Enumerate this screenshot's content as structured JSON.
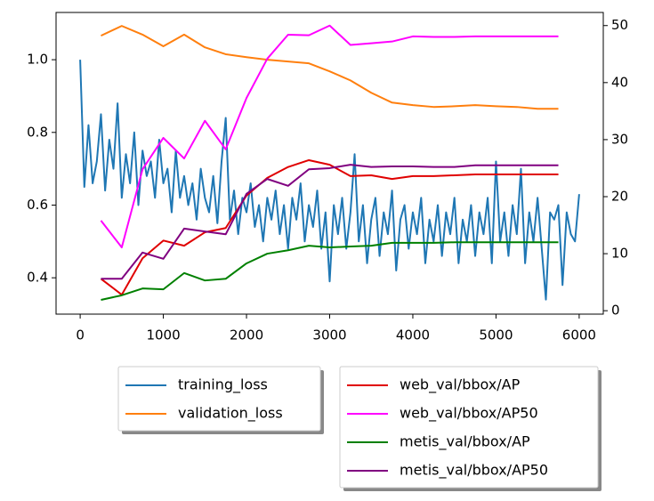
{
  "chart_data": {
    "type": "line",
    "xlim": [
      -290,
      6290
    ],
    "xticks": [
      0,
      1000,
      2000,
      3000,
      4000,
      5000,
      6000
    ],
    "ylim": [
      0.3,
      1.13
    ],
    "yticks": [
      0.4,
      0.6,
      0.8,
      {
        "value": 1.0,
        "label": "1.0"
      }
    ],
    "y2lim": [
      -0.6,
      52.3
    ],
    "y2ticks": [
      0,
      10,
      20,
      30,
      40,
      50
    ],
    "series": [
      {
        "name": "training_loss",
        "color": "#1f77b4",
        "axis": "y",
        "x": [
          0,
          50,
          100,
          150,
          200,
          250,
          300,
          350,
          400,
          450,
          500,
          550,
          600,
          650,
          700,
          750,
          800,
          850,
          900,
          950,
          1000,
          1050,
          1100,
          1150,
          1200,
          1250,
          1300,
          1350,
          1400,
          1450,
          1500,
          1550,
          1600,
          1650,
          1700,
          1750,
          1800,
          1850,
          1900,
          1950,
          2000,
          2050,
          2100,
          2150,
          2200,
          2250,
          2300,
          2350,
          2400,
          2450,
          2500,
          2550,
          2600,
          2650,
          2700,
          2750,
          2800,
          2850,
          2900,
          2950,
          3000,
          3050,
          3100,
          3150,
          3200,
          3250,
          3300,
          3350,
          3400,
          3450,
          3500,
          3550,
          3600,
          3650,
          3700,
          3750,
          3800,
          3850,
          3900,
          3950,
          4000,
          4050,
          4100,
          4150,
          4200,
          4250,
          4300,
          4350,
          4400,
          4450,
          4500,
          4550,
          4600,
          4650,
          4700,
          4750,
          4800,
          4850,
          4900,
          4950,
          5000,
          5050,
          5100,
          5150,
          5200,
          5250,
          5300,
          5350,
          5400,
          5450,
          5500,
          5550,
          5600,
          5650,
          5700,
          5750,
          5800,
          5850,
          5900,
          5950,
          6000
        ],
        "values": [
          1.0,
          0.65,
          0.82,
          0.66,
          0.72,
          0.85,
          0.64,
          0.78,
          0.7,
          0.88,
          0.62,
          0.74,
          0.66,
          0.8,
          0.6,
          0.75,
          0.68,
          0.72,
          0.62,
          0.78,
          0.66,
          0.7,
          0.58,
          0.75,
          0.62,
          0.68,
          0.6,
          0.66,
          0.56,
          0.7,
          0.62,
          0.58,
          0.68,
          0.55,
          0.72,
          0.84,
          0.56,
          0.64,
          0.52,
          0.62,
          0.58,
          0.66,
          0.54,
          0.6,
          0.5,
          0.62,
          0.56,
          0.64,
          0.52,
          0.6,
          0.48,
          0.62,
          0.56,
          0.66,
          0.5,
          0.6,
          0.54,
          0.64,
          0.48,
          0.58,
          0.39,
          0.6,
          0.52,
          0.62,
          0.48,
          0.58,
          0.74,
          0.5,
          0.6,
          0.44,
          0.56,
          0.62,
          0.46,
          0.58,
          0.52,
          0.64,
          0.42,
          0.56,
          0.6,
          0.48,
          0.58,
          0.52,
          0.62,
          0.44,
          0.56,
          0.5,
          0.6,
          0.46,
          0.58,
          0.52,
          0.62,
          0.44,
          0.56,
          0.5,
          0.6,
          0.46,
          0.58,
          0.52,
          0.62,
          0.44,
          0.72,
          0.5,
          0.58,
          0.46,
          0.6,
          0.52,
          0.7,
          0.44,
          0.58,
          0.5,
          0.62,
          0.48,
          0.34,
          0.58,
          0.56,
          0.6,
          0.38,
          0.58,
          0.52,
          0.5,
          0.63
        ]
      },
      {
        "name": "validation_loss",
        "color": "#ff7f0e",
        "axis": "y",
        "x": [
          250,
          500,
          750,
          1000,
          1250,
          1500,
          1750,
          2000,
          2250,
          2500,
          2750,
          3000,
          3250,
          3500,
          3750,
          4000,
          4250,
          4500,
          4750,
          5000,
          5250,
          5500,
          5750
        ],
        "values": [
          1.066,
          1.093,
          1.069,
          1.037,
          1.069,
          1.034,
          1.015,
          1.007,
          1.0,
          0.995,
          0.99,
          0.968,
          0.943,
          0.909,
          0.882,
          0.875,
          0.87,
          0.872,
          0.875,
          0.872,
          0.87,
          0.865,
          0.865
        ]
      },
      {
        "name": "web_val/bbox/AP",
        "color": "#e00000",
        "axis": "y2",
        "x": [
          250,
          500,
          750,
          1000,
          1250,
          1500,
          1750,
          2000,
          2250,
          2500,
          2750,
          3000,
          3250,
          3500,
          3750,
          4000,
          4250,
          4500,
          4750,
          5000,
          5250,
          5500,
          5750
        ],
        "values": [
          5.6,
          2.8,
          9.2,
          12.3,
          11.4,
          13.75,
          14.5,
          20.2,
          23.3,
          25.2,
          26.4,
          25.6,
          23.6,
          23.75,
          23.1,
          23.6,
          23.6,
          23.75,
          23.9,
          23.9,
          23.9,
          23.9,
          23.9
        ]
      },
      {
        "name": "web_val/bbox/AP50",
        "color": "#ff00ff",
        "axis": "y2",
        "x": [
          250,
          500,
          750,
          1000,
          1250,
          1500,
          1750,
          2000,
          2250,
          2500,
          2750,
          3000,
          3250,
          3500,
          3750,
          4000,
          4250,
          4500,
          4750,
          5000,
          5250,
          5500,
          5750
        ],
        "values": [
          15.8,
          11.1,
          24.8,
          30.3,
          26.7,
          33.3,
          28.3,
          37.3,
          44.2,
          48.4,
          48.3,
          50,
          46.6,
          46.9,
          47.2,
          48.1,
          48,
          48,
          48.1,
          48.1,
          48.1,
          48.1,
          48.1
        ]
      },
      {
        "name": "metis_val/bbox/AP",
        "color": "#008000",
        "axis": "y2",
        "x": [
          250,
          500,
          750,
          1000,
          1250,
          1500,
          1750,
          2000,
          2250,
          2500,
          2750,
          3000,
          3250,
          3500,
          3750,
          4000,
          4250,
          4500,
          4750,
          5000,
          5250,
          5500,
          5750
        ],
        "values": [
          1.9,
          2.7,
          3.9,
          3.75,
          6.6,
          5.3,
          5.6,
          8.3,
          10,
          10.6,
          11.4,
          11.1,
          11.25,
          11.4,
          11.9,
          11.9,
          11.9,
          12,
          12,
          12,
          12,
          12,
          12
        ]
      },
      {
        "name": "metis_val/bbox/AP50",
        "color": "#800080",
        "axis": "y2",
        "x": [
          250,
          500,
          750,
          1000,
          1250,
          1500,
          1750,
          2000,
          2250,
          2500,
          2750,
          3000,
          3250,
          3500,
          3750,
          4000,
          4250,
          4500,
          4750,
          5000,
          5250,
          5500,
          5750
        ],
        "values": [
          5.6,
          5.6,
          10.2,
          9.1,
          14.4,
          13.9,
          13.4,
          20.5,
          23.1,
          21.9,
          24.8,
          25,
          25.6,
          25.2,
          25.3,
          25.3,
          25.2,
          25.2,
          25.5,
          25.5,
          25.5,
          25.5,
          25.5
        ]
      }
    ]
  }
}
